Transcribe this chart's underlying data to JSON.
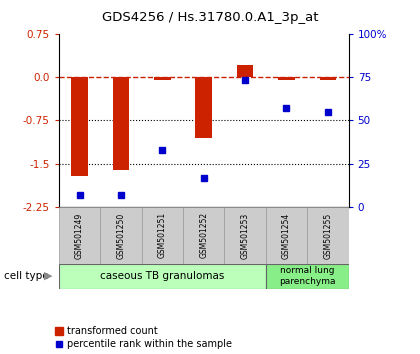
{
  "title": "GDS4256 / Hs.31780.0.A1_3p_at",
  "samples": [
    "GSM501249",
    "GSM501250",
    "GSM501251",
    "GSM501252",
    "GSM501253",
    "GSM501254",
    "GSM501255"
  ],
  "bar_values": [
    -1.72,
    -1.6,
    -0.05,
    -1.05,
    0.2,
    -0.05,
    -0.05
  ],
  "percentile_values": [
    7,
    7,
    33,
    17,
    73,
    57,
    55
  ],
  "left_ylim": [
    -2.25,
    0.75
  ],
  "right_ylim": [
    0,
    100
  ],
  "left_yticks": [
    0.75,
    0.0,
    -0.75,
    -1.5,
    -2.25
  ],
  "right_yticks": [
    100,
    75,
    50,
    25,
    0
  ],
  "right_yticklabels": [
    "100%",
    "75",
    "50",
    "25",
    "0"
  ],
  "dotted_lines": [
    -0.75,
    -1.5
  ],
  "bar_color": "#cc2200",
  "dot_color": "#0000cc",
  "bar_width": 0.4,
  "group1_label": "caseous TB granulomas",
  "group1_color": "#bbffbb",
  "group2_label": "normal lung\nparenchyma",
  "group2_color": "#88ee88",
  "cell_type_label": "cell type",
  "legend_bar_label": "transformed count",
  "legend_dot_label": "percentile rank within the sample",
  "bg_color": "#ffffff",
  "tick_color_left": "#cc2200",
  "tick_color_right": "#0000cc"
}
